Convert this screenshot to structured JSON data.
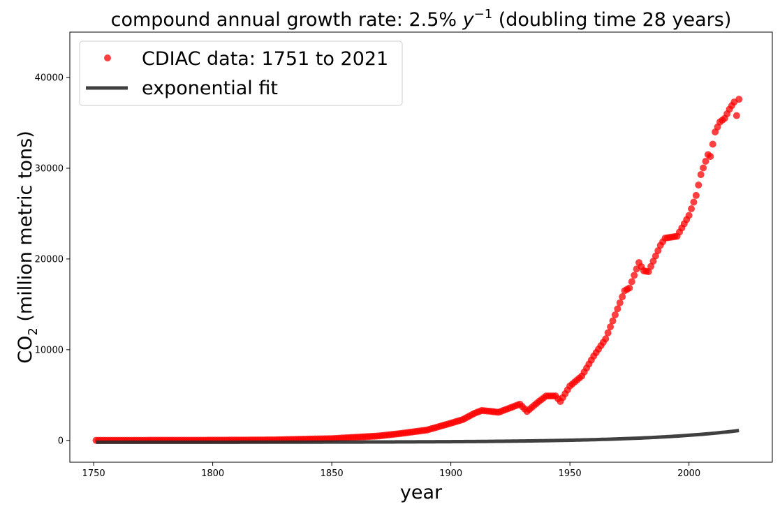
{
  "chart_data": {
    "type": "scatter",
    "title_prefix": "compound annual growth rate: 2.5% ",
    "title_var": "y",
    "title_exp": "−1",
    "title_suffix": " (doubling time 28 years)",
    "xlabel": "year",
    "ylabel_prefix": "CO",
    "ylabel_sub": "2",
    "ylabel_suffix": " (million metric tons)",
    "xlim": [
      1740,
      2035
    ],
    "ylim": [
      -2400,
      45000
    ],
    "xticks": [
      1750,
      1800,
      1850,
      1900,
      1950,
      2000
    ],
    "yticks": [
      0,
      10000,
      20000,
      30000,
      40000
    ],
    "legend_position": "top-left",
    "colors": {
      "data": "#ff0000",
      "fit": "#2b2b2b"
    },
    "series": [
      {
        "name": "CDIAC data: 1751 to 2021",
        "kind": "points",
        "keypoints": [
          [
            1751,
            10
          ],
          [
            1800,
            30
          ],
          [
            1825,
            60
          ],
          [
            1840,
            150
          ],
          [
            1850,
            200
          ],
          [
            1860,
            350
          ],
          [
            1870,
            500
          ],
          [
            1880,
            800
          ],
          [
            1890,
            1150
          ],
          [
            1900,
            1900
          ],
          [
            1905,
            2300
          ],
          [
            1910,
            3000
          ],
          [
            1913,
            3300
          ],
          [
            1917,
            3200
          ],
          [
            1920,
            3100
          ],
          [
            1925,
            3600
          ],
          [
            1929,
            4000
          ],
          [
            1932,
            3200
          ],
          [
            1937,
            4300
          ],
          [
            1940,
            4900
          ],
          [
            1944,
            4900
          ],
          [
            1946,
            4300
          ],
          [
            1950,
            6000
          ],
          [
            1955,
            7100
          ],
          [
            1960,
            9300
          ],
          [
            1965,
            11200
          ],
          [
            1970,
            14500
          ],
          [
            1973,
            16500
          ],
          [
            1975,
            16800
          ],
          [
            1979,
            19600
          ],
          [
            1981,
            18700
          ],
          [
            1983,
            18600
          ],
          [
            1988,
            21500
          ],
          [
            1990,
            22300
          ],
          [
            1995,
            22500
          ],
          [
            2000,
            24800
          ],
          [
            2003,
            27000
          ],
          [
            2005,
            29300
          ],
          [
            2008,
            31500
          ],
          [
            2009,
            31300
          ],
          [
            2011,
            34000
          ],
          [
            2013,
            35100
          ],
          [
            2015,
            35500
          ],
          [
            2017,
            36500
          ],
          [
            2019,
            37300
          ],
          [
            2020,
            35800
          ],
          [
            2021,
            37600
          ]
        ]
      },
      {
        "name": "exponential fit",
        "kind": "line",
        "a": -200,
        "b": 1.63,
        "k": 0.02472,
        "base_year": 1751,
        "x_range": [
          1751,
          2021
        ]
      }
    ]
  }
}
